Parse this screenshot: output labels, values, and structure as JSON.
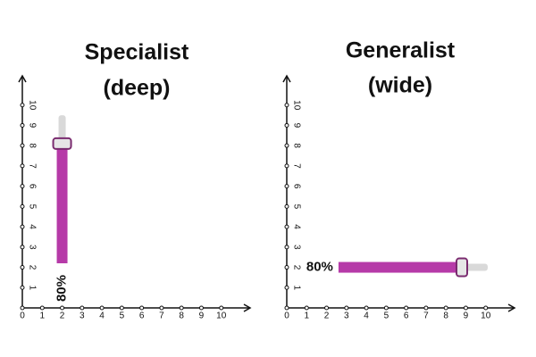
{
  "chart_data": [
    {
      "type": "bar",
      "title": "Specialist",
      "subtitle": "(deep)",
      "orientation": "vertical",
      "position": 2,
      "base": 2.2,
      "value": 8.1,
      "track_end": 9.5,
      "annotation": "80%",
      "color": "#b63aa8",
      "track_color": "#d9d9d9",
      "xlim": [
        0,
        11
      ],
      "ylim": [
        0,
        11
      ],
      "xticks": [
        0,
        1,
        2,
        3,
        4,
        5,
        6,
        7,
        8,
        9,
        10
      ],
      "yticks": [
        1,
        2,
        3,
        4,
        5,
        6,
        7,
        8,
        9,
        10
      ]
    },
    {
      "type": "bar",
      "title": "Generalist",
      "subtitle": "(wide)",
      "orientation": "horizontal",
      "position": 2,
      "base": 2.6,
      "value": 8.8,
      "track_end": 10.1,
      "annotation": "80%",
      "color": "#b63aa8",
      "track_color": "#d9d9d9",
      "xlim": [
        0,
        11
      ],
      "ylim": [
        0,
        11
      ],
      "xticks": [
        0,
        1,
        2,
        3,
        4,
        5,
        6,
        7,
        8,
        9,
        10
      ],
      "yticks": [
        1,
        2,
        3,
        4,
        5,
        6,
        7,
        8,
        9,
        10
      ]
    }
  ]
}
